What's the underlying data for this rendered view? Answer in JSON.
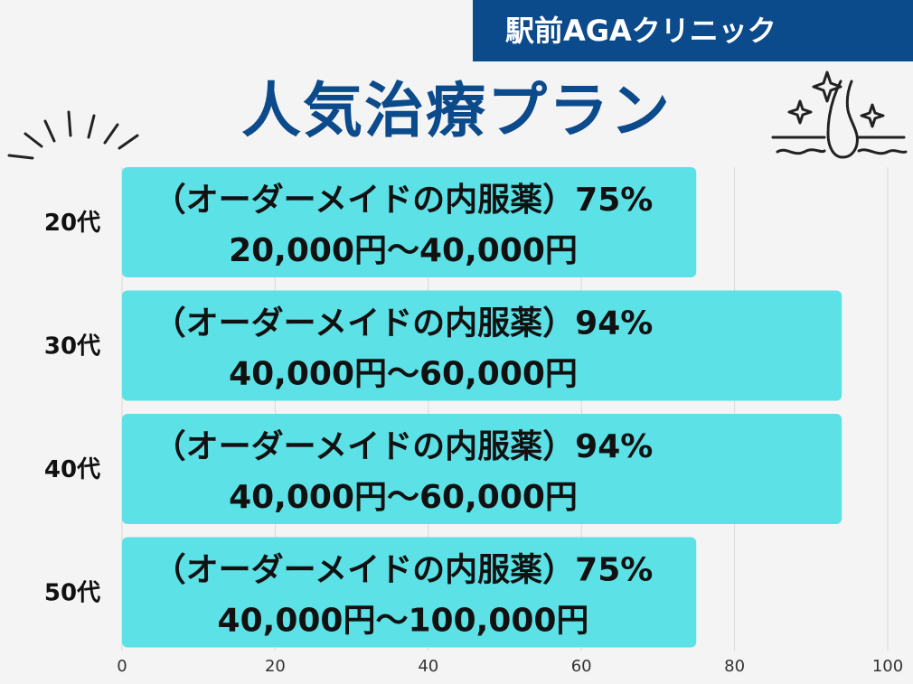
{
  "header": {
    "brand": "駅前AGAクリニック",
    "title": "人気治療プラン"
  },
  "decorations": {
    "left_icon": "sparkle-burst-icon",
    "right_icon": "hair-follicle-sparkle-icon"
  },
  "colors": {
    "bar": "#5ce1e6",
    "brand": "#0b4a8b",
    "background": "#f4f4f4",
    "grid": "#d9d9d9"
  },
  "chart_data": {
    "type": "bar",
    "orientation": "horizontal",
    "categories": [
      "20代",
      "30代",
      "40代",
      "50代"
    ],
    "values": [
      75,
      94,
      94,
      75
    ],
    "bar_labels": [
      [
        "（オーダーメイドの内服薬）75%",
        "20,000円〜40,000円"
      ],
      [
        "（オーダーメイドの内服薬）94%",
        "40,000円〜60,000円"
      ],
      [
        "（オーダーメイドの内服薬）94%",
        "40,000円〜60,000円"
      ],
      [
        "（オーダーメイドの内服薬）75%",
        "40,000円〜100,000円"
      ]
    ],
    "xlim": [
      0,
      100
    ],
    "xticks": [
      0,
      20,
      40,
      60,
      80,
      100
    ],
    "grid": true
  }
}
